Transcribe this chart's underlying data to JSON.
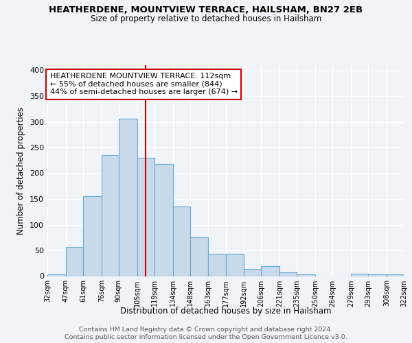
{
  "title": "HEATHERDENE, MOUNTVIEW TERRACE, HAILSHAM, BN27 2EB",
  "subtitle": "Size of property relative to detached houses in Hailsham",
  "xlabel": "Distribution of detached houses by size in Hailsham",
  "ylabel": "Number of detached properties",
  "bin_edges": [
    32,
    47,
    61,
    76,
    90,
    105,
    119,
    134,
    148,
    163,
    177,
    192,
    206,
    221,
    235,
    250,
    264,
    279,
    293,
    308,
    322
  ],
  "bar_heights": [
    4,
    57,
    155,
    236,
    306,
    230,
    218,
    135,
    76,
    43,
    43,
    14,
    20,
    7,
    4,
    0,
    0,
    5,
    4,
    3
  ],
  "bar_color": "#c8d9ea",
  "bar_edge_color": "#6aaad4",
  "property_size": 112,
  "vline_color": "#cc0000",
  "annotation_text": "HEATHERDENE MOUNTVIEW TERRACE: 112sqm\n← 55% of detached houses are smaller (844)\n44% of semi-detached houses are larger (674) →",
  "annotation_box_color": "#ffffff",
  "annotation_box_edge_color": "#cc0000",
  "footer_line1": "Contains HM Land Registry data © Crown copyright and database right 2024.",
  "footer_line2": "Contains public sector information licensed under the Open Government Licence v3.0.",
  "ylim": [
    0,
    410
  ],
  "yticks": [
    0,
    50,
    100,
    150,
    200,
    250,
    300,
    350,
    400
  ],
  "background_color": "#f0f4f8",
  "plot_background_color": "#f0f4f8",
  "grid_color": "#ffffff"
}
